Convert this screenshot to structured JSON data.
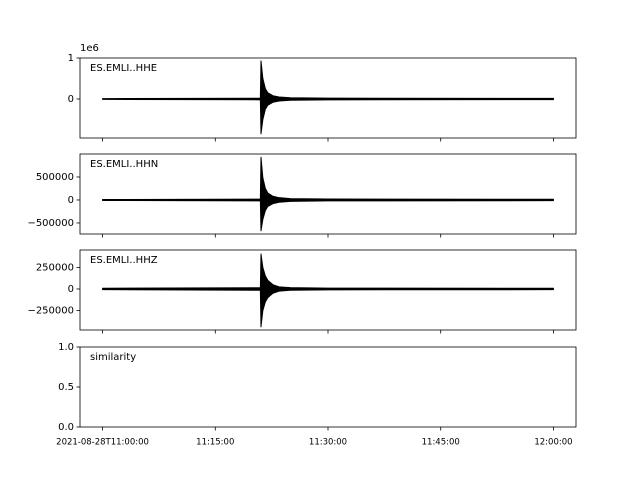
{
  "chart_data": [
    {
      "type": "waveform",
      "label": "ES.EMLI..HHE",
      "y_offset_label": "1e6",
      "ylim": [
        -951000,
        1000000
      ],
      "yticks": [
        0,
        {
          "value": 1000000,
          "label": "1"
        }
      ],
      "x": [
        "2021-08-28T11:00:00",
        "2021-08-28T11:21:00",
        "2021-08-28T11:21:05",
        "2021-08-28T11:21:20",
        "2021-08-28T11:21:40",
        "2021-08-28T11:22:00",
        "2021-08-28T11:22:40",
        "2021-08-28T11:23:30",
        "2021-08-28T11:25:00",
        "2021-08-28T11:30:00",
        "2021-08-28T12:00:00"
      ],
      "upper": [
        10000,
        20000,
        930000,
        500000,
        250000,
        150000,
        80000,
        50000,
        30000,
        20000,
        15000
      ],
      "lower": [
        -10000,
        -20000,
        -850000,
        -500000,
        -250000,
        -150000,
        -80000,
        -50000,
        -30000,
        -20000,
        -15000
      ],
      "color": "#000000"
    },
    {
      "type": "waveform",
      "label": "ES.EMLI..HHN",
      "ylim": [
        -740000,
        1000000
      ],
      "yticks": [
        {
          "value": -500000,
          "label": "−500000"
        },
        0,
        500000
      ],
      "x": [
        "2021-08-28T11:00:00",
        "2021-08-28T11:21:00",
        "2021-08-28T11:21:05",
        "2021-08-28T11:21:20",
        "2021-08-28T11:21:40",
        "2021-08-28T11:22:00",
        "2021-08-28T11:22:40",
        "2021-08-28T11:23:30",
        "2021-08-28T11:25:00",
        "2021-08-28T11:30:00",
        "2021-08-28T12:00:00"
      ],
      "upper": [
        10000,
        20000,
        930000,
        480000,
        250000,
        150000,
        80000,
        50000,
        30000,
        20000,
        15000
      ],
      "lower": [
        -10000,
        -20000,
        -670000,
        -420000,
        -230000,
        -140000,
        -80000,
        -50000,
        -30000,
        -20000,
        -15000
      ],
      "color": "#000000"
    },
    {
      "type": "waveform",
      "label": "ES.EMLI..HHZ",
      "ylim": [
        -477000,
        453000
      ],
      "yticks": [
        {
          "value": -250000,
          "label": "−250000"
        },
        0,
        250000
      ],
      "x": [
        "2021-08-28T11:00:00",
        "2021-08-28T11:21:00",
        "2021-08-28T11:21:05",
        "2021-08-28T11:21:20",
        "2021-08-28T11:21:40",
        "2021-08-28T11:22:00",
        "2021-08-28T11:22:40",
        "2021-08-28T11:23:30",
        "2021-08-28T11:25:00",
        "2021-08-28T11:30:00",
        "2021-08-28T12:00:00"
      ],
      "upper": [
        8000,
        15000,
        407000,
        250000,
        150000,
        100000,
        50000,
        25000,
        15000,
        10000,
        8000
      ],
      "lower": [
        -8000,
        -15000,
        -440000,
        -250000,
        -150000,
        -100000,
        -50000,
        -25000,
        -15000,
        -10000,
        -8000
      ],
      "color": "#000000"
    },
    {
      "type": "empty",
      "label": "similarity",
      "ylim": [
        0,
        1
      ],
      "yticks": [
        {
          "value": 0,
          "label": "0.0"
        },
        {
          "value": 0.5,
          "label": "0.5"
        },
        {
          "value": 1,
          "label": "1.0"
        }
      ],
      "xlim": [
        "2021-08-28T11:00:00",
        "2021-08-28T12:00:00"
      ],
      "xticks": [
        {
          "value": "2021-08-28T11:00:00",
          "label": "2021-08-28T11:00:00"
        },
        {
          "value": "2021-08-28T11:15:00",
          "label": "11:15:00"
        },
        {
          "value": "2021-08-28T11:30:00",
          "label": "11:30:00"
        },
        {
          "value": "2021-08-28T11:45:00",
          "label": "11:45:00"
        },
        {
          "value": "2021-08-28T12:00:00",
          "label": "12:00:00"
        }
      ]
    }
  ]
}
